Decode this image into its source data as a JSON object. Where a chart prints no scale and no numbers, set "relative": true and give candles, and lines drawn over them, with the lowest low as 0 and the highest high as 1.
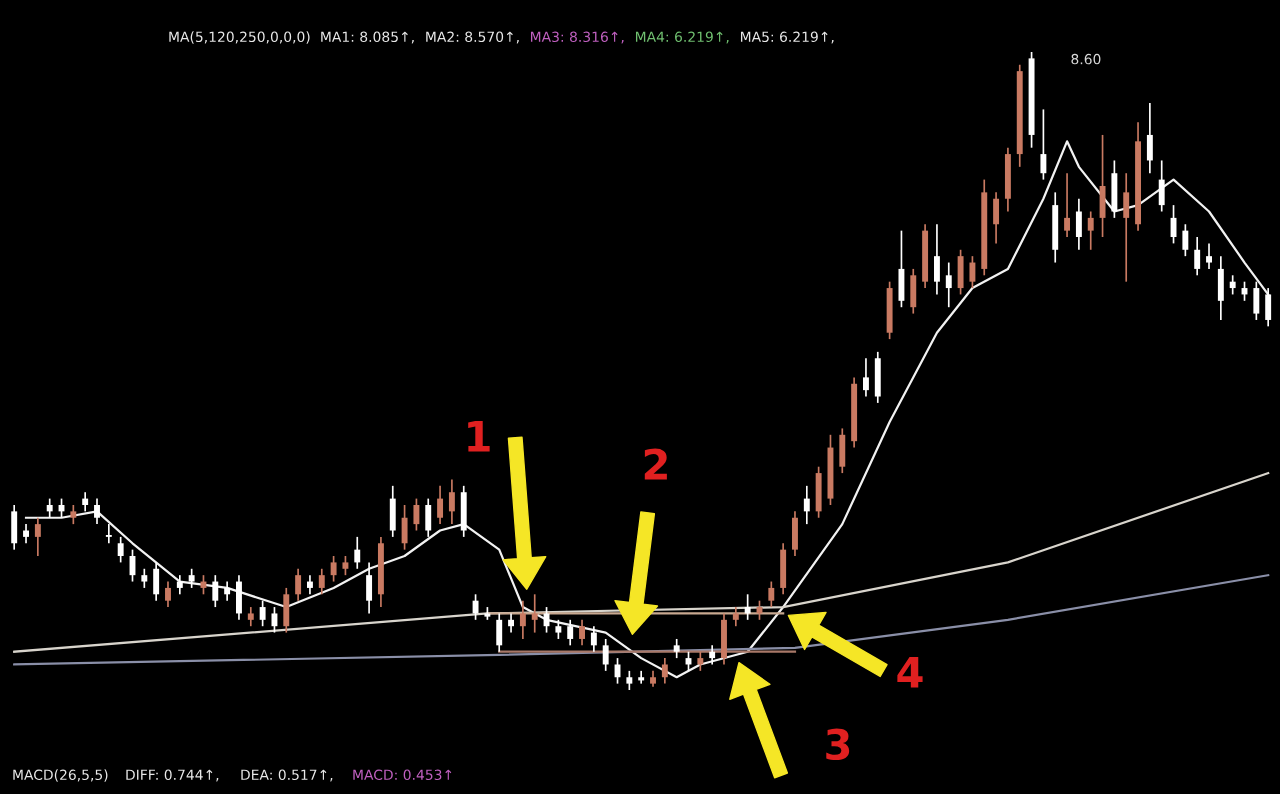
{
  "chart_data": {
    "type": "candlestick",
    "relative": true,
    "categories": [
      null,
      null,
      null,
      null,
      null,
      null,
      null,
      null,
      null,
      null,
      null,
      null,
      null,
      null,
      null,
      null,
      null,
      null,
      null,
      null,
      null,
      null,
      null,
      null,
      null,
      null,
      null,
      null,
      null,
      null,
      null,
      null,
      null,
      null,
      null,
      null,
      null,
      null,
      null,
      null,
      null,
      null,
      null,
      null,
      null,
      null,
      null,
      null,
      null,
      null,
      null,
      null,
      null,
      null,
      null,
      null,
      null,
      null,
      null,
      null,
      null,
      null,
      null,
      null,
      null,
      null,
      null,
      null,
      null,
      null,
      null,
      null,
      null,
      null,
      null,
      null,
      null,
      null,
      null,
      null,
      null,
      null,
      null,
      null,
      null,
      null,
      null,
      null,
      null,
      null,
      null,
      null,
      null,
      null,
      null,
      null,
      null,
      null,
      null,
      null,
      null,
      null,
      null,
      null,
      null,
      null,
      null
    ],
    "ohlc": [
      [
        0.28,
        0.29,
        0.22,
        0.23
      ],
      [
        0.25,
        0.26,
        0.23,
        0.24
      ],
      [
        0.24,
        0.27,
        0.21,
        0.26
      ],
      [
        0.29,
        0.3,
        0.27,
        0.28
      ],
      [
        0.29,
        0.3,
        0.27,
        0.28
      ],
      [
        0.27,
        0.29,
        0.26,
        0.28
      ],
      [
        0.3,
        0.31,
        0.28,
        0.29
      ],
      [
        0.29,
        0.3,
        0.26,
        0.27
      ],
      [
        0.24,
        0.26,
        0.23,
        0.24
      ],
      [
        0.23,
        0.24,
        0.2,
        0.21
      ],
      [
        0.21,
        0.22,
        0.17,
        0.18
      ],
      [
        0.18,
        0.19,
        0.16,
        0.17
      ],
      [
        0.19,
        0.2,
        0.14,
        0.15
      ],
      [
        0.14,
        0.17,
        0.13,
        0.16
      ],
      [
        0.17,
        0.18,
        0.15,
        0.16
      ],
      [
        0.18,
        0.19,
        0.16,
        0.17
      ],
      [
        0.16,
        0.18,
        0.15,
        0.17
      ],
      [
        0.17,
        0.18,
        0.13,
        0.14
      ],
      [
        0.16,
        0.17,
        0.14,
        0.15
      ],
      [
        0.17,
        0.18,
        0.11,
        0.12
      ],
      [
        0.11,
        0.13,
        0.1,
        0.12
      ],
      [
        0.13,
        0.14,
        0.1,
        0.11
      ],
      [
        0.12,
        0.13,
        0.09,
        0.1
      ],
      [
        0.1,
        0.16,
        0.09,
        0.15
      ],
      [
        0.15,
        0.19,
        0.14,
        0.18
      ],
      [
        0.17,
        0.18,
        0.15,
        0.16
      ],
      [
        0.16,
        0.19,
        0.15,
        0.18
      ],
      [
        0.18,
        0.21,
        0.17,
        0.2
      ],
      [
        0.19,
        0.21,
        0.18,
        0.2
      ],
      [
        0.22,
        0.24,
        0.19,
        0.2
      ],
      [
        0.18,
        0.2,
        0.12,
        0.14
      ],
      [
        0.15,
        0.24,
        0.13,
        0.23
      ],
      [
        0.3,
        0.32,
        0.24,
        0.25
      ],
      [
        0.23,
        0.29,
        0.22,
        0.27
      ],
      [
        0.26,
        0.3,
        0.25,
        0.29
      ],
      [
        0.29,
        0.3,
        0.24,
        0.25
      ],
      [
        0.27,
        0.32,
        0.26,
        0.3
      ],
      [
        0.28,
        0.33,
        0.26,
        0.31
      ],
      [
        0.31,
        0.32,
        0.24,
        0.25
      ],
      [
        0.14,
        0.15,
        0.11,
        0.12
      ],
      [
        0.12,
        0.13,
        0.11,
        0.115
      ],
      [
        0.11,
        0.12,
        0.06,
        0.07
      ],
      [
        0.11,
        0.12,
        0.09,
        0.1
      ],
      [
        0.1,
        0.14,
        0.08,
        0.12
      ],
      [
        0.11,
        0.15,
        0.09,
        0.12
      ],
      [
        0.12,
        0.13,
        0.09,
        0.1
      ],
      [
        0.1,
        0.11,
        0.08,
        0.09
      ],
      [
        0.1,
        0.11,
        0.07,
        0.08
      ],
      [
        0.08,
        0.11,
        0.07,
        0.1
      ],
      [
        0.09,
        0.1,
        0.06,
        0.07
      ],
      [
        0.07,
        0.08,
        0.03,
        0.04
      ],
      [
        0.04,
        0.05,
        0.01,
        0.02
      ],
      [
        0.02,
        0.03,
        0.0,
        0.01
      ],
      [
        0.02,
        0.03,
        0.01,
        0.015
      ],
      [
        0.01,
        0.03,
        0.005,
        0.02
      ],
      [
        0.02,
        0.05,
        0.01,
        0.04
      ],
      [
        0.07,
        0.08,
        0.05,
        0.06
      ],
      [
        0.05,
        0.06,
        0.03,
        0.04
      ],
      [
        0.04,
        0.06,
        0.03,
        0.05
      ],
      [
        0.06,
        0.07,
        0.04,
        0.05
      ],
      [
        0.05,
        0.12,
        0.04,
        0.11
      ],
      [
        0.11,
        0.13,
        0.1,
        0.12
      ],
      [
        0.13,
        0.15,
        0.11,
        0.12
      ],
      [
        0.12,
        0.14,
        0.11,
        0.13
      ],
      [
        0.14,
        0.17,
        0.13,
        0.16
      ],
      [
        0.16,
        0.23,
        0.15,
        0.22
      ],
      [
        0.22,
        0.28,
        0.21,
        0.27
      ],
      [
        0.3,
        0.32,
        0.26,
        0.28
      ],
      [
        0.28,
        0.35,
        0.27,
        0.34
      ],
      [
        0.3,
        0.4,
        0.29,
        0.38
      ],
      [
        0.35,
        0.41,
        0.34,
        0.4
      ],
      [
        0.39,
        0.49,
        0.38,
        0.48
      ],
      [
        0.49,
        0.52,
        0.46,
        0.47
      ],
      [
        0.52,
        0.53,
        0.45,
        0.46
      ],
      [
        0.56,
        0.64,
        0.55,
        0.63
      ],
      [
        0.66,
        0.72,
        0.6,
        0.61
      ],
      [
        0.6,
        0.66,
        0.59,
        0.65
      ],
      [
        0.64,
        0.73,
        0.63,
        0.72
      ],
      [
        0.68,
        0.73,
        0.62,
        0.64
      ],
      [
        0.65,
        0.67,
        0.6,
        0.63
      ],
      [
        0.63,
        0.69,
        0.62,
        0.68
      ],
      [
        0.64,
        0.68,
        0.63,
        0.67
      ],
      [
        0.66,
        0.8,
        0.65,
        0.78
      ],
      [
        0.73,
        0.78,
        0.7,
        0.77
      ],
      [
        0.77,
        0.85,
        0.75,
        0.84
      ],
      [
        0.84,
        0.98,
        0.82,
        0.97
      ],
      [
        0.99,
        1.0,
        0.85,
        0.87
      ],
      [
        0.84,
        0.91,
        0.8,
        0.81
      ],
      [
        0.76,
        0.78,
        0.67,
        0.69
      ],
      [
        0.72,
        0.81,
        0.71,
        0.74
      ],
      [
        0.75,
        0.77,
        0.69,
        0.71
      ],
      [
        0.72,
        0.75,
        0.69,
        0.74
      ],
      [
        0.74,
        0.87,
        0.71,
        0.79
      ],
      [
        0.81,
        0.83,
        0.74,
        0.75
      ],
      [
        0.74,
        0.81,
        0.64,
        0.78
      ],
      [
        0.73,
        0.89,
        0.72,
        0.86
      ],
      [
        0.87,
        0.92,
        0.81,
        0.83
      ],
      [
        0.8,
        0.83,
        0.75,
        0.76
      ],
      [
        0.74,
        0.76,
        0.7,
        0.71
      ],
      [
        0.72,
        0.73,
        0.68,
        0.69
      ],
      [
        0.69,
        0.71,
        0.65,
        0.66
      ],
      [
        0.68,
        0.7,
        0.66,
        0.67
      ],
      [
        0.66,
        0.68,
        0.58,
        0.61
      ],
      [
        0.64,
        0.65,
        0.62,
        0.63
      ],
      [
        0.63,
        0.64,
        0.61,
        0.62
      ],
      [
        0.63,
        0.64,
        0.58,
        0.59
      ],
      [
        0.62,
        0.63,
        0.57,
        0.58
      ]
    ],
    "series": [
      {
        "type": "line",
        "color": "#f2f2f2",
        "values": [
          null,
          0.27,
          null,
          null,
          0.27,
          null,
          null,
          0.28,
          null,
          null,
          0.23,
          null,
          null,
          null,
          0.17,
          null,
          null,
          null,
          0.16,
          null,
          null,
          null,
          null,
          0.13,
          null,
          null,
          null,
          0.16,
          null,
          null,
          0.19,
          null,
          null,
          0.21,
          null,
          null,
          0.25,
          null,
          0.26,
          null,
          null,
          0.22,
          null,
          0.13,
          null,
          0.11,
          null,
          null,
          null,
          null,
          0.09,
          null,
          null,
          0.05,
          null,
          null,
          0.02,
          null,
          0.04,
          null,
          null,
          null,
          0.06,
          null,
          null,
          0.13,
          null,
          null,
          null,
          null,
          0.26,
          null,
          null,
          null,
          0.42,
          null,
          null,
          null,
          0.56,
          null,
          null,
          0.63,
          null,
          null,
          0.66,
          null,
          null,
          0.77,
          null,
          0.86,
          0.82,
          null,
          null,
          0.75,
          null,
          0.76,
          null,
          null,
          0.8,
          null,
          null,
          0.75,
          null,
          null,
          0.67,
          null,
          0.62
        ]
      },
      {
        "type": "line",
        "color": "#d8d4cc",
        "values": [
          0.06,
          null,
          null,
          null,
          null,
          null,
          null,
          null,
          null,
          null,
          null,
          null,
          null,
          null,
          null,
          null,
          null,
          null,
          null,
          null,
          null,
          null,
          null,
          null,
          null,
          null,
          null,
          null,
          null,
          null,
          null,
          null,
          null,
          null,
          null,
          null,
          null,
          null,
          null,
          null,
          0.12,
          null,
          null,
          null,
          null,
          null,
          null,
          null,
          null,
          null,
          null,
          null,
          null,
          null,
          null,
          null,
          null,
          null,
          null,
          null,
          null,
          null,
          null,
          null,
          null,
          0.13,
          null,
          null,
          null,
          null,
          null,
          null,
          null,
          null,
          null,
          null,
          null,
          null,
          null,
          null,
          null,
          null,
          null,
          null,
          0.2,
          null,
          null,
          null,
          null,
          null,
          null,
          null,
          null,
          null,
          null,
          null,
          null,
          null,
          null,
          null,
          null,
          null,
          null,
          null,
          null,
          null,
          0.34
        ]
      },
      {
        "type": "line",
        "color": "#8a8fa8",
        "values": [
          0.04,
          null,
          null,
          null,
          null,
          null,
          null,
          null,
          null,
          null,
          null,
          null,
          null,
          null,
          null,
          null,
          null,
          null,
          null,
          null,
          null,
          null,
          null,
          null,
          null,
          null,
          null,
          null,
          null,
          null,
          null,
          null,
          null,
          null,
          null,
          null,
          null,
          null,
          null,
          null,
          null,
          0.055,
          null,
          null,
          null,
          null,
          null,
          null,
          null,
          null,
          null,
          null,
          null,
          null,
          null,
          null,
          null,
          null,
          null,
          null,
          null,
          null,
          null,
          null,
          null,
          null,
          0.066,
          null,
          null,
          null,
          null,
          null,
          null,
          null,
          null,
          null,
          null,
          null,
          null,
          null,
          null,
          null,
          null,
          null,
          0.11,
          null,
          null,
          null,
          null,
          null,
          null,
          null,
          null,
          null,
          null,
          null,
          null,
          null,
          null,
          null,
          null,
          null,
          null,
          null,
          null,
          null,
          0.18
        ]
      },
      {
        "type": "line",
        "color": "#c8a890",
        "values": [
          null,
          null,
          null,
          null,
          null,
          null,
          null,
          null,
          null,
          null,
          null,
          null,
          null,
          null,
          null,
          null,
          null,
          null,
          null,
          null,
          null,
          null,
          null,
          null,
          null,
          null,
          null,
          null,
          null,
          null,
          null,
          null,
          null,
          null,
          null,
          null,
          null,
          null,
          null,
          null,
          0.12,
          null,
          null,
          null,
          null,
          null,
          null,
          null,
          null,
          null,
          null,
          null,
          null,
          null,
          null,
          null,
          null,
          null,
          null,
          null,
          null,
          null,
          null,
          null,
          null,
          0.12,
          null,
          null,
          null,
          null,
          null,
          null,
          null,
          null,
          null,
          null,
          null,
          null,
          null,
          null,
          null,
          null,
          null,
          null,
          null,
          null,
          null,
          null,
          null,
          null,
          null,
          null,
          null,
          null,
          null,
          null,
          null,
          null,
          null,
          null,
          null,
          null,
          null,
          null,
          null,
          null,
          null
        ]
      },
      {
        "type": "line",
        "color": "#a87868",
        "values": [
          null,
          null,
          null,
          null,
          null,
          null,
          null,
          null,
          null,
          null,
          null,
          null,
          null,
          null,
          null,
          null,
          null,
          null,
          null,
          null,
          null,
          null,
          null,
          null,
          null,
          null,
          null,
          null,
          null,
          null,
          null,
          null,
          null,
          null,
          null,
          null,
          null,
          null,
          null,
          null,
          null,
          0.06,
          null,
          null,
          null,
          null,
          null,
          null,
          null,
          null,
          null,
          null,
          null,
          null,
          null,
          null,
          null,
          null,
          null,
          null,
          null,
          null,
          null,
          null,
          null,
          null,
          0.06,
          null,
          null,
          null,
          null,
          null,
          null,
          null,
          null,
          null,
          null,
          null,
          null,
          null,
          null,
          null,
          null,
          null,
          null,
          null,
          null,
          null,
          null,
          null,
          null,
          null,
          null,
          null,
          null,
          null,
          null,
          null,
          null,
          null,
          null,
          null,
          null,
          null,
          null,
          null,
          null
        ]
      }
    ],
    "annotations": [
      "MA(5,120,250,0,0,0)",
      "MA1: 8.085↑,",
      "MA2: 8.570↑,",
      "MA3: 8.316↑,",
      "MA4: 6.219↑,",
      "MA5: 6.219↑,",
      "8.60",
      "MACD(26,5,5)",
      "DIFF: 0.744↑,",
      "DEA: 0.517↑,",
      "MACD: 0.453↑",
      "1",
      "2",
      "3",
      "4"
    ]
  }
}
